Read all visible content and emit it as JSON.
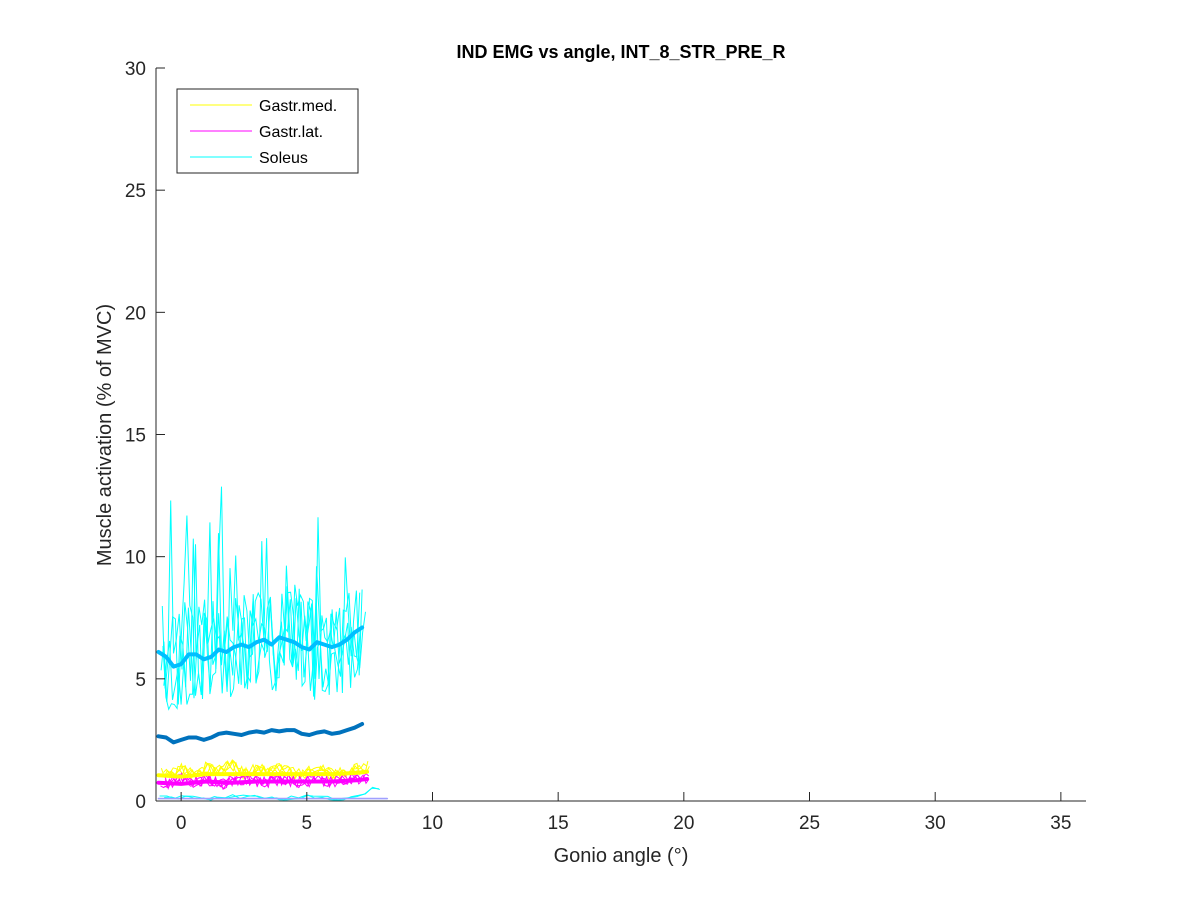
{
  "chart_data": {
    "type": "line",
    "title": "IND EMG vs angle, INT_8_STR_PRE_R",
    "xlabel": "Gonio angle (°)",
    "ylabel": "Muscle activation (% of MVC)",
    "xlim": [
      -1,
      36
    ],
    "ylim": [
      0,
      30
    ],
    "xticks": [
      0,
      5,
      10,
      15,
      20,
      25,
      30,
      35
    ],
    "yticks": [
      0,
      5,
      10,
      15,
      20,
      25,
      30
    ],
    "xtick_labels": [
      "0",
      "5",
      "10",
      "15",
      "20",
      "25",
      "30",
      "35"
    ],
    "ytick_labels": [
      "0",
      "5",
      "10",
      "15",
      "20",
      "25",
      "30"
    ],
    "grid": false,
    "legend_position": "top-left",
    "series": [
      {
        "name": "Gastr.med.",
        "color": "#ffff00",
        "style": "thin-trials",
        "x": [
          -0.9,
          -0.5,
          0,
          0.5,
          1,
          1.5,
          2,
          2.5,
          3,
          3.5,
          4,
          4.5,
          5,
          5.5,
          6,
          6.5,
          7,
          7.5
        ],
        "values": [
          1.2,
          1.0,
          1.3,
          1.1,
          1.4,
          1.2,
          1.5,
          1.1,
          1.3,
          1.2,
          1.4,
          1.1,
          1.2,
          1.3,
          1.1,
          1.2,
          1.3,
          1.4
        ]
      },
      {
        "name": "Gastr.lat.",
        "color": "#ff00ff",
        "style": "thin-trials",
        "x": [
          -0.9,
          -0.5,
          0,
          0.5,
          1,
          1.5,
          2,
          2.5,
          3,
          3.5,
          4,
          4.5,
          5,
          5.5,
          6,
          6.5,
          7,
          7.5
        ],
        "values": [
          0.8,
          0.7,
          0.9,
          0.8,
          0.9,
          0.7,
          0.8,
          0.9,
          0.8,
          0.8,
          0.9,
          0.8,
          0.8,
          0.9,
          0.8,
          0.9,
          0.9,
          1.0
        ]
      },
      {
        "name": "Soleus",
        "color": "#00ffff",
        "style": "thin-trials",
        "x": [
          -0.9,
          -0.5,
          0,
          0.5,
          1,
          1.5,
          2,
          2.5,
          3,
          3.5,
          4,
          4.5,
          5,
          5.5,
          6,
          6.5,
          7,
          7.5
        ],
        "values": [
          6.5,
          5.8,
          6.0,
          6.3,
          6.1,
          6.6,
          6.4,
          6.5,
          6.7,
          6.3,
          6.6,
          6.8,
          6.4,
          6.3,
          6.5,
          6.6,
          6.8,
          7.0
        ]
      },
      {
        "color": "#00bfff",
        "style": "thick-mean-lightblue",
        "x": [
          -0.9,
          -0.6,
          -0.3,
          0,
          0.3,
          0.6,
          0.9,
          1.2,
          1.5,
          1.8,
          2.1,
          2.4,
          2.7,
          3.0,
          3.3,
          3.6,
          3.9,
          4.2,
          4.5,
          4.8,
          5.1,
          5.4,
          5.7,
          6.0,
          6.3,
          6.6,
          6.9,
          7.2
        ],
        "values": [
          6.1,
          5.9,
          5.5,
          5.6,
          6.0,
          6.0,
          5.8,
          5.9,
          6.2,
          6.1,
          6.3,
          6.4,
          6.3,
          6.5,
          6.6,
          6.4,
          6.7,
          6.6,
          6.5,
          6.3,
          6.2,
          6.5,
          6.4,
          6.3,
          6.4,
          6.6,
          6.9,
          7.1
        ]
      },
      {
        "color": "#0072bd",
        "style": "thick-mean-blue",
        "x": [
          -0.9,
          -0.6,
          -0.3,
          0,
          0.3,
          0.6,
          0.9,
          1.2,
          1.5,
          1.8,
          2.1,
          2.4,
          2.7,
          3.0,
          3.3,
          3.6,
          3.9,
          4.2,
          4.5,
          4.8,
          5.1,
          5.4,
          5.7,
          6.0,
          6.3,
          6.6,
          6.9,
          7.2
        ],
        "values": [
          2.65,
          2.6,
          2.4,
          2.5,
          2.6,
          2.6,
          2.5,
          2.6,
          2.75,
          2.8,
          2.75,
          2.7,
          2.8,
          2.85,
          2.8,
          2.9,
          2.85,
          2.9,
          2.9,
          2.75,
          2.7,
          2.8,
          2.85,
          2.75,
          2.8,
          2.9,
          3.0,
          3.15
        ]
      },
      {
        "color": "#ffff00",
        "style": "thick-mean",
        "x": [
          -0.9,
          0,
          1,
          2,
          3,
          4,
          5,
          6,
          7,
          7.4
        ],
        "values": [
          1.05,
          1.0,
          1.1,
          1.1,
          1.1,
          1.1,
          1.1,
          1.1,
          1.15,
          1.2
        ]
      },
      {
        "color": "#ff00ff",
        "style": "thick-mean",
        "x": [
          -0.9,
          0,
          1,
          2,
          3,
          4,
          5,
          6,
          7,
          7.4
        ],
        "values": [
          0.75,
          0.7,
          0.8,
          0.75,
          0.8,
          0.8,
          0.8,
          0.8,
          0.85,
          0.9
        ]
      },
      {
        "color": "#00ffff",
        "style": "baseline-trials",
        "x": [
          -0.9,
          0,
          1,
          2,
          3,
          4,
          5,
          6,
          7,
          7.8,
          8.1
        ],
        "values": [
          0.2,
          0.15,
          0.1,
          0.2,
          0.15,
          0.1,
          0.2,
          0.1,
          0.15,
          0.6,
          0.1
        ]
      },
      {
        "color": "#a0a0ff",
        "style": "baseline-mean",
        "x": [
          -0.9,
          1,
          3,
          5,
          7,
          8.2
        ],
        "values": [
          0.1,
          0.1,
          0.1,
          0.1,
          0.1,
          0.1
        ]
      }
    ]
  }
}
